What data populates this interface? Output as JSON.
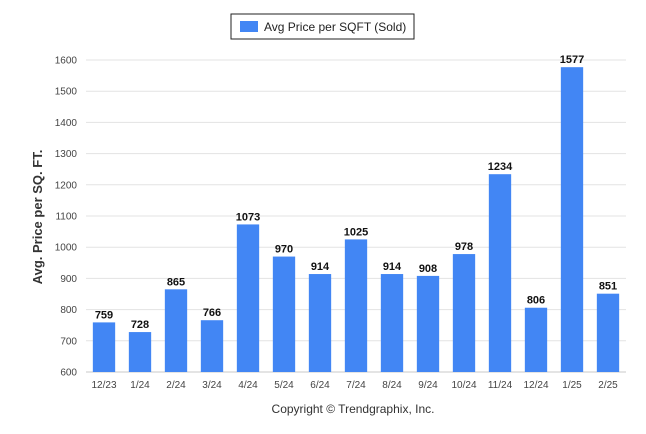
{
  "chart_data": {
    "type": "bar",
    "categories": [
      "12/23",
      "1/24",
      "2/24",
      "3/24",
      "4/24",
      "5/24",
      "6/24",
      "7/24",
      "8/24",
      "9/24",
      "10/24",
      "11/24",
      "12/24",
      "1/25",
      "2/25"
    ],
    "series": [
      {
        "name": "Avg Price per SQFT (Sold)",
        "values": [
          759,
          728,
          865,
          766,
          1073,
          970,
          914,
          1025,
          914,
          908,
          978,
          1234,
          806,
          1577,
          851
        ],
        "color": "#4286f4"
      }
    ],
    "ylabel": "Avg. Price per SQ. FT.",
    "xlabel": "",
    "ylim": [
      600,
      1600
    ],
    "yticks": [
      600,
      700,
      800,
      900,
      1000,
      1100,
      1200,
      1300,
      1400,
      1500,
      1600
    ],
    "grid": true,
    "legend_position": "top-center",
    "data_labels": true
  },
  "footer": {
    "copyright": "Copyright © Trendgraphix, Inc."
  }
}
